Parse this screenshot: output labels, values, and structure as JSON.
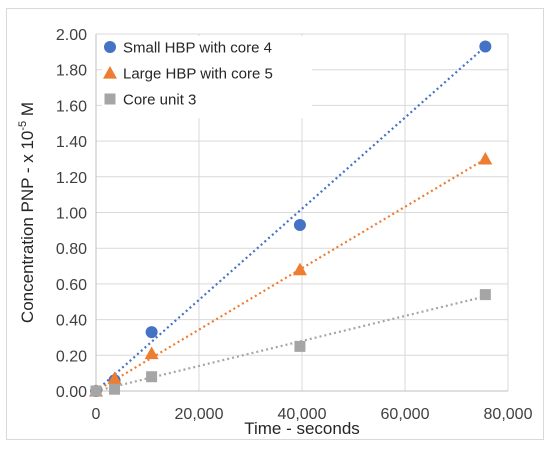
{
  "chart_data": {
    "type": "scatter",
    "xlabel": "Time - seconds",
    "ylabel_main": "Concentration PNP - x 10",
    "ylabel_sup": "-5",
    "ylabel_unit": " M",
    "xlim": [
      0,
      80000
    ],
    "ylim": [
      0,
      2.0
    ],
    "x_ticks": [
      0,
      20000,
      40000,
      60000,
      80000
    ],
    "x_tick_labels": [
      "0",
      "20,000",
      "40,000",
      "60,000",
      "80,000"
    ],
    "y_ticks": [
      0,
      0.2,
      0.4,
      0.6,
      0.8,
      1.0,
      1.2,
      1.4,
      1.6,
      1.8,
      2.0
    ],
    "y_tick_labels": [
      "0.00",
      "0.20",
      "0.40",
      "0.60",
      "0.80",
      "1.00",
      "1.20",
      "1.40",
      "1.60",
      "1.80",
      "2.00"
    ],
    "grid": true,
    "legend_position": "top-left",
    "series": [
      {
        "name": "Small HBP with core 4",
        "marker": "circle",
        "color": "#4472c4",
        "points": [
          [
            0,
            0.0
          ],
          [
            3600,
            0.06
          ],
          [
            10800,
            0.33
          ],
          [
            39600,
            0.93
          ],
          [
            75600,
            1.93
          ]
        ],
        "trendline": [
          [
            0,
            0.0
          ],
          [
            75600,
            1.93
          ]
        ]
      },
      {
        "name": "Large HBP with core 5",
        "marker": "triangle",
        "color": "#ed7d31",
        "points": [
          [
            0,
            0.0
          ],
          [
            3600,
            0.07
          ],
          [
            10800,
            0.21
          ],
          [
            39600,
            0.68
          ],
          [
            75600,
            1.3
          ]
        ],
        "trendline": [
          [
            0,
            0.0
          ],
          [
            75600,
            1.3
          ]
        ]
      },
      {
        "name": "Core unit 3",
        "marker": "square",
        "color": "#a5a5a5",
        "points": [
          [
            0,
            0.0
          ],
          [
            3600,
            0.01
          ],
          [
            10800,
            0.08
          ],
          [
            39600,
            0.25
          ],
          [
            75600,
            0.54
          ]
        ],
        "trendline": [
          [
            0,
            0.0
          ],
          [
            75600,
            0.53
          ]
        ]
      }
    ]
  }
}
